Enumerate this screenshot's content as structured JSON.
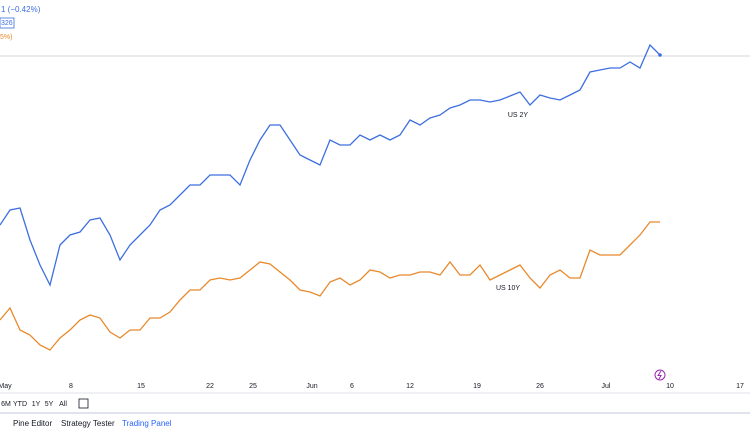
{
  "chart_data": {
    "type": "line",
    "legend_texts": [
      "1 (−0.42%)",
      "326",
      "5%)"
    ],
    "xlim": [
      0,
      75
    ],
    "xticks": [
      {
        "value": 0.5,
        "label": "May"
      },
      {
        "value": 7.1,
        "label": "8"
      },
      {
        "value": 14.1,
        "label": "15"
      },
      {
        "value": 21,
        "label": "22"
      },
      {
        "value": 25.3,
        "label": "25"
      },
      {
        "value": 31.2,
        "label": "Jun"
      },
      {
        "value": 35.2,
        "label": "6"
      },
      {
        "value": 41,
        "label": "12"
      },
      {
        "value": 47.7,
        "label": "19"
      },
      {
        "value": 54,
        "label": "26"
      },
      {
        "value": 60.6,
        "label": "Jul"
      },
      {
        "value": 67,
        "label": "10"
      },
      {
        "value": 74,
        "label": "17"
      }
    ],
    "ylim": [
      0,
      372
    ],
    "series": [
      {
        "name": "US 2Y",
        "color": "#3d6fe0",
        "values": [
          147,
          162,
          164,
          132,
          107,
          87,
          127,
          137,
          140,
          152,
          154,
          137,
          112,
          127,
          137,
          147,
          162,
          167,
          177,
          187,
          187,
          197,
          197,
          197,
          187,
          212,
          232,
          247,
          247,
          232,
          217,
          212,
          207,
          232,
          227,
          227,
          237,
          232,
          237,
          232,
          237,
          252,
          247,
          254,
          257,
          264,
          267,
          272,
          272,
          270,
          272,
          276,
          280,
          267,
          277,
          274,
          272,
          277,
          282,
          300,
          302,
          304,
          304,
          310,
          304,
          327,
          317
        ]
      },
      {
        "name": "US 10Y",
        "color": "#e8892c",
        "values": [
          52,
          64,
          42,
          37,
          27,
          22,
          34,
          42,
          52,
          57,
          54,
          40,
          34,
          42,
          42,
          54,
          54,
          60,
          72,
          82,
          82,
          92,
          94,
          92,
          94,
          102,
          110,
          108,
          100,
          92,
          82,
          80,
          76,
          90,
          94,
          87,
          92,
          102,
          100,
          94,
          97,
          97,
          100,
          100,
          97,
          110,
          97,
          97,
          107,
          92,
          97,
          102,
          107,
          94,
          84,
          97,
          102,
          94,
          94,
          122,
          117,
          117,
          117,
          127,
          137,
          150,
          150
        ]
      }
    ]
  },
  "toolbar": {
    "ranges": [
      "6M",
      "YTD",
      "1Y",
      "5Y",
      "All"
    ]
  },
  "tabs": [
    "Pine Editor",
    "Strategy Tester",
    "Trading Panel"
  ]
}
